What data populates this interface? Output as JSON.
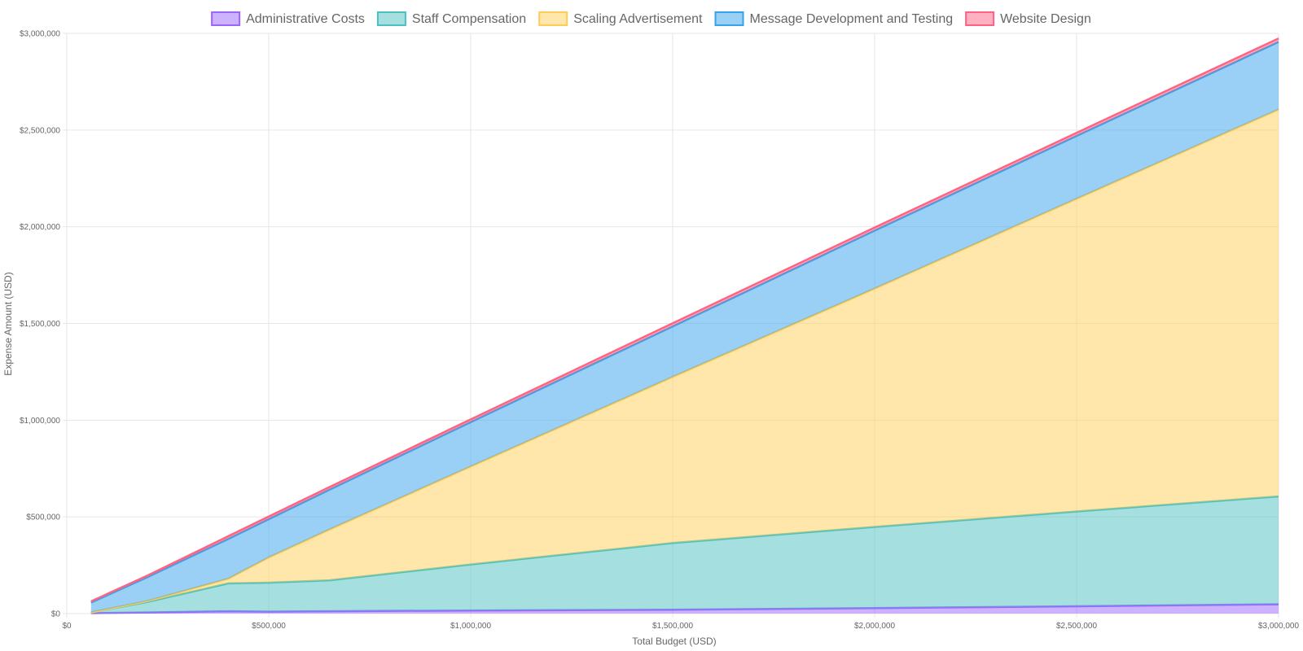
{
  "chart_data": {
    "type": "area",
    "stacked": true,
    "xlabel": "Total Budget (USD)",
    "ylabel": "Expense Amount (USD)",
    "xlim": [
      0,
      3000000
    ],
    "ylim": [
      0,
      3000000
    ],
    "x_ticks": [
      0,
      500000,
      1000000,
      1500000,
      2000000,
      2500000,
      3000000
    ],
    "x_tick_labels": [
      "$0",
      "$500,000",
      "$1,000,000",
      "$1,500,000",
      "$2,000,000",
      "$2,500,000",
      "$3,000,000"
    ],
    "y_ticks": [
      0,
      500000,
      1000000,
      1500000,
      2000000,
      2500000,
      3000000
    ],
    "y_tick_labels": [
      "$0",
      "$500,000",
      "$1,000,000",
      "$1,500,000",
      "$2,000,000",
      "$2,500,000",
      "$3,000,000"
    ],
    "grid": true,
    "legend_position": "top",
    "x": [
      60000,
      200000,
      400000,
      500000,
      650000,
      1000000,
      1500000,
      2000000,
      2500000,
      3000000
    ],
    "series": [
      {
        "name": "Administrative Costs",
        "color": "#9966ff",
        "values": [
          2000,
          6000,
          12000,
          10000,
          12000,
          16000,
          20000,
          28000,
          38000,
          48000
        ]
      },
      {
        "name": "Staff Compensation",
        "color": "#4bc0c0",
        "values": [
          4000,
          54000,
          144000,
          150000,
          160000,
          238000,
          345000,
          420000,
          490000,
          558000
        ]
      },
      {
        "name": "Scaling Advertisement",
        "color": "#ffcd56",
        "values": [
          0,
          5000,
          24000,
          130000,
          262000,
          506000,
          858000,
          1232000,
          1616000,
          2000000
        ]
      },
      {
        "name": "Message Development and Testing",
        "color": "#36a2eb",
        "values": [
          51000,
          124000,
          206000,
          198000,
          206000,
          230000,
          262000,
          300000,
          326000,
          350000
        ]
      },
      {
        "name": "Website Design",
        "color": "#ff6384",
        "values": [
          6000,
          8000,
          14000,
          14000,
          14000,
          14000,
          16000,
          16000,
          16000,
          18000
        ]
      }
    ]
  }
}
